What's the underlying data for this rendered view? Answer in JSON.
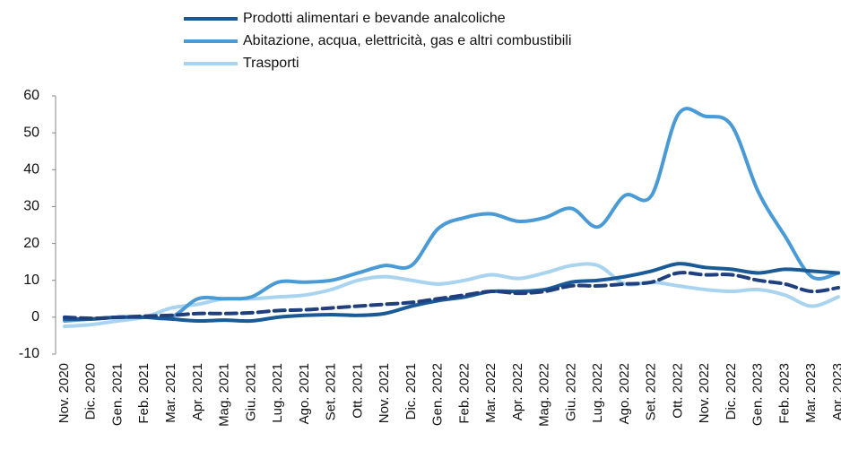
{
  "chart_data": {
    "type": "line",
    "categories": [
      "Nov. 2020",
      "Dic. 2020",
      "Gen. 2021",
      "Feb. 2021",
      "Mar. 2021",
      "Apr. 2021",
      "Mag. 2021",
      "Giu. 2021",
      "Lug. 2021",
      "Ago. 2021",
      "Set. 2021",
      "Ott. 2021",
      "Nov. 2021",
      "Dic. 2021",
      "Gen. 2022",
      "Feb. 2022",
      "Mar. 2022",
      "Apr. 2022",
      "Mag. 2022",
      "Giu. 2022",
      "Lug. 2022",
      "Ago. 2022",
      "Set. 2022",
      "Ott. 2022",
      "Nov. 2022",
      "Dic. 2022",
      "Gen. 2023",
      "Feb. 2023",
      "Mar. 2023",
      "Apr. 2023"
    ],
    "series": [
      {
        "name": "Prodotti alimentari e bevande analcoliche",
        "color": "#1a5a96",
        "values": [
          -0.5,
          -0.5,
          0,
          0,
          -0.5,
          -1,
          -0.8,
          -1,
          0,
          0.5,
          0.7,
          0.5,
          1,
          3,
          4.5,
          5.5,
          7,
          7,
          7.5,
          9.5,
          10,
          11,
          12.5,
          14.5,
          13.5,
          13,
          12,
          13,
          12.5,
          12
        ]
      },
      {
        "name": "Abitazione, acqua, elettricità, gas e altri combustibili",
        "color": "#4a9ad6",
        "values": [
          -1,
          -0.5,
          0,
          0,
          0,
          5,
          5,
          5.5,
          9.5,
          9.5,
          10,
          12,
          14,
          14,
          24,
          27,
          28,
          26,
          27,
          29.5,
          24.5,
          33,
          33,
          55,
          54.5,
          52,
          34,
          22,
          11,
          12
        ]
      },
      {
        "name": "Trasporti",
        "color": "#a9d4f0",
        "values": [
          -2.5,
          -2,
          -1,
          0,
          2.5,
          3.5,
          5,
          5,
          5.5,
          6,
          7.5,
          10,
          11,
          10,
          9,
          10,
          11.5,
          10.5,
          12,
          14,
          14,
          9,
          9.5,
          8.5,
          7.5,
          7,
          7.5,
          6,
          3,
          5.5
        ]
      },
      {
        "color": "#1f3f7f",
        "dashed": true,
        "values": [
          0,
          -0.3,
          0,
          0.3,
          0.5,
          1,
          1,
          1.2,
          1.8,
          2,
          2.5,
          3,
          3.5,
          4,
          5,
          6,
          7,
          6.5,
          7,
          8.5,
          8.5,
          9,
          9.5,
          12,
          11.5,
          11.5,
          10,
          9,
          7,
          8
        ]
      }
    ],
    "ylim": [
      -10,
      60
    ],
    "yticks": [
      -10,
      0,
      10,
      20,
      30,
      40,
      50,
      60
    ]
  }
}
